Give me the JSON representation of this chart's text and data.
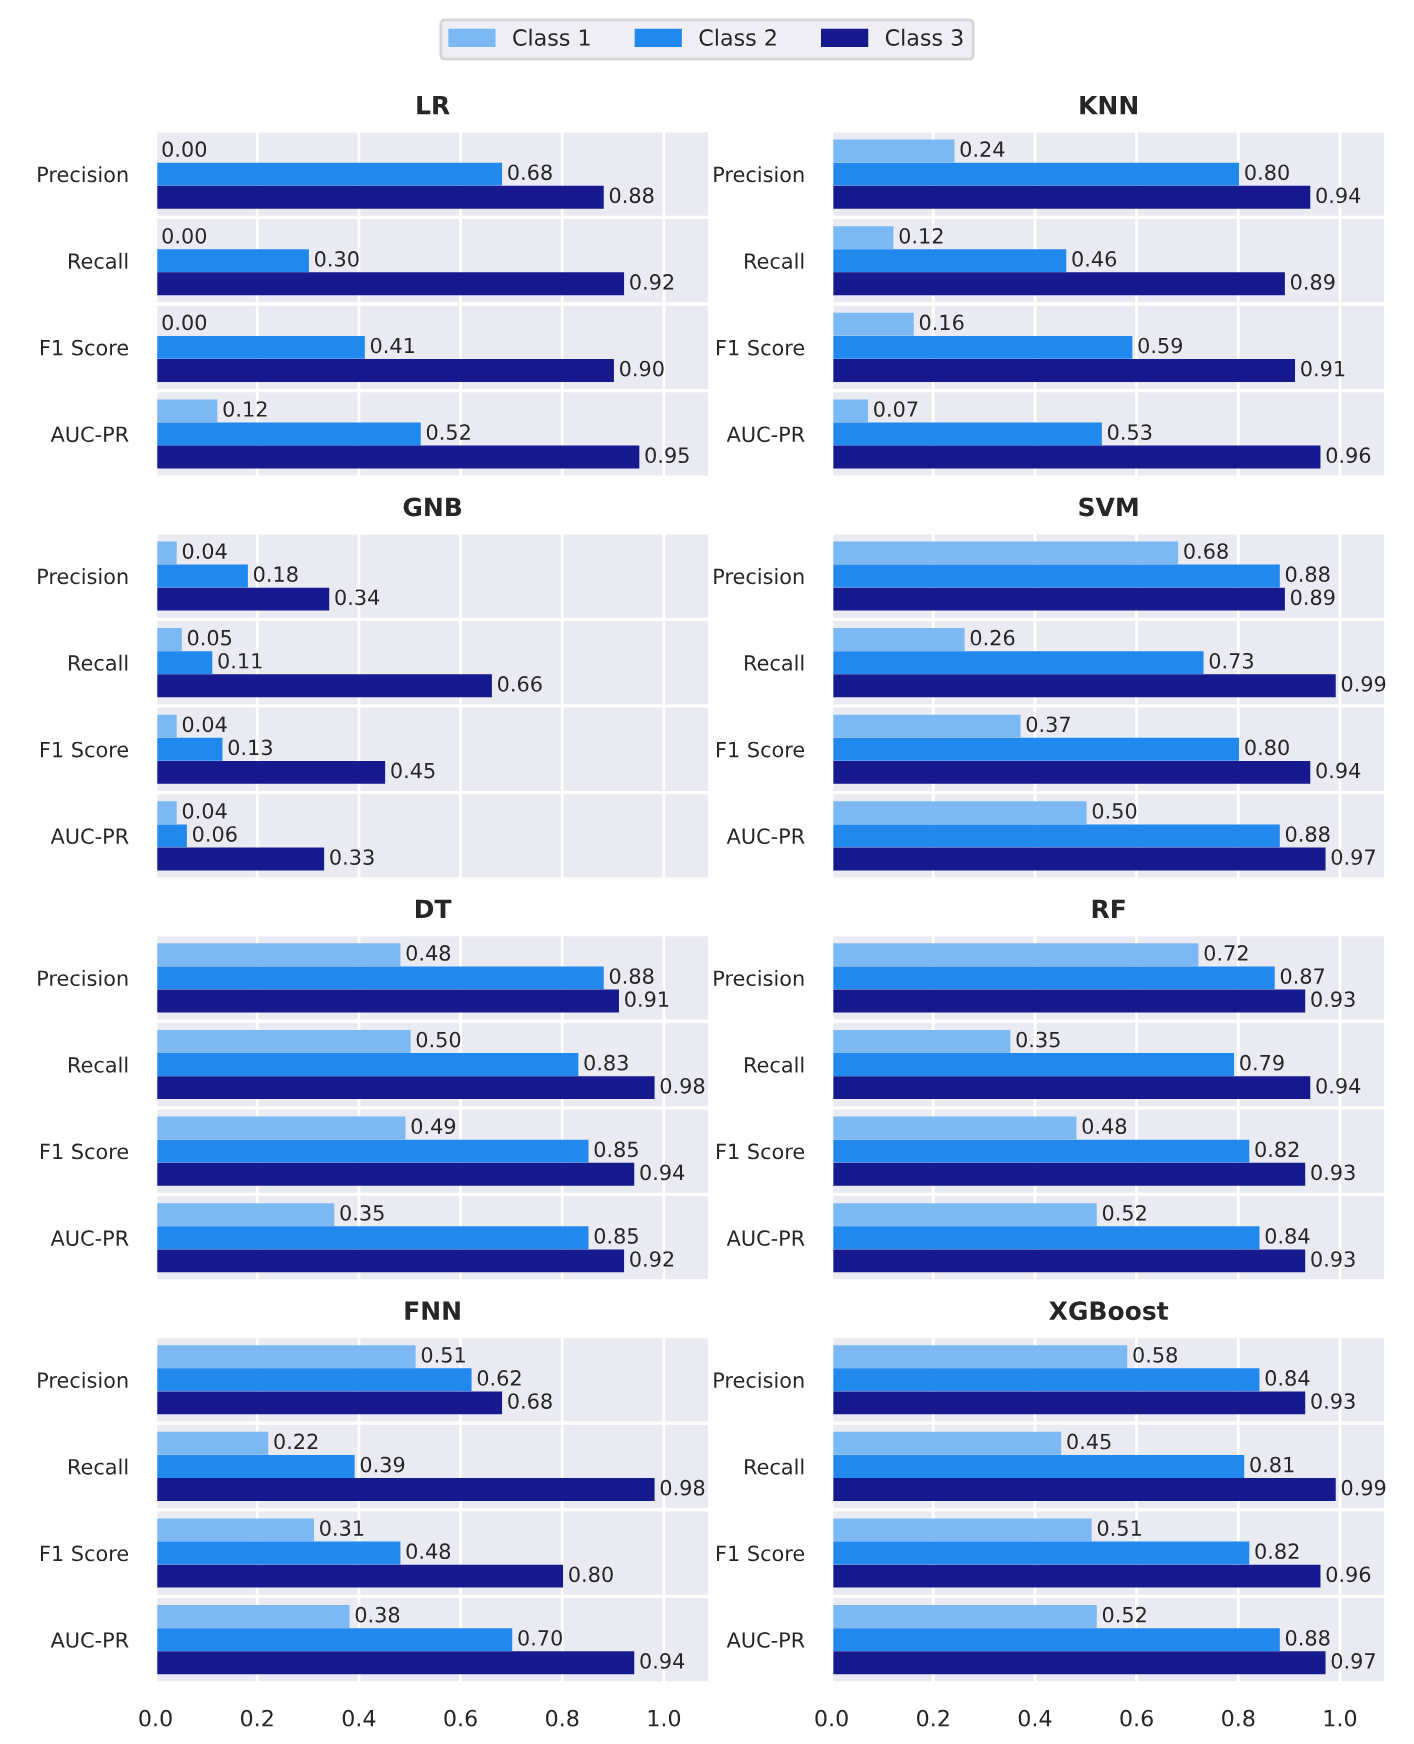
{
  "chart_data": [
    {
      "type": "bar",
      "orientation": "horizontal",
      "title": "LR",
      "categories": [
        "Precision",
        "Recall",
        "F1 Score",
        "AUC-PR"
      ],
      "series": [
        {
          "name": "Class 1",
          "color": "#7cb9f4",
          "values": [
            0.0,
            0.0,
            0.0,
            0.12
          ],
          "value_labels": [
            "0.00",
            "0.00",
            "0.00",
            "0.12"
          ]
        },
        {
          "name": "Class 2",
          "color": "#2188ee",
          "values": [
            0.68,
            0.3,
            0.41,
            0.52
          ],
          "value_labels": [
            "0.68",
            "0.30",
            "0.41",
            "0.52"
          ]
        },
        {
          "name": "Class 3",
          "color": "#161a8e",
          "values": [
            0.88,
            0.92,
            0.9,
            0.95
          ],
          "value_labels": [
            "0.88",
            "0.92",
            "0.90",
            "0.95"
          ]
        }
      ],
      "xlim": [
        0,
        1.09
      ],
      "xticks": [
        {
          "value": 0.0,
          "label": null
        },
        {
          "value": 0.2,
          "label": null
        },
        {
          "value": 0.4,
          "label": null
        },
        {
          "value": 0.6,
          "label": null
        },
        {
          "value": 0.8,
          "label": null
        },
        {
          "value": 1.0,
          "label": null
        }
      ],
      "grid": true,
      "legend": "top"
    },
    {
      "type": "bar",
      "orientation": "horizontal",
      "title": "KNN",
      "categories": [
        "Precision",
        "Recall",
        "F1 Score",
        "AUC-PR"
      ],
      "series": [
        {
          "color": "#7cb9f4",
          "values": [
            0.24,
            0.12,
            0.16,
            0.07
          ],
          "value_labels": [
            "0.24",
            "0.12",
            "0.16",
            "0.07"
          ]
        },
        {
          "color": "#2188ee",
          "values": [
            0.8,
            0.46,
            0.59,
            0.53
          ],
          "value_labels": [
            "0.80",
            "0.46",
            "0.59",
            "0.53"
          ]
        },
        {
          "color": "#161a8e",
          "values": [
            0.94,
            0.89,
            0.91,
            0.96
          ],
          "value_labels": [
            "0.94",
            "0.89",
            "0.91",
            "0.96"
          ]
        }
      ],
      "xlim": [
        0,
        1.09
      ],
      "xticks": [
        {
          "value": 0.0,
          "label": null
        },
        {
          "value": 0.2,
          "label": null
        },
        {
          "value": 0.4,
          "label": null
        },
        {
          "value": 0.6,
          "label": null
        },
        {
          "value": 0.8,
          "label": null
        },
        {
          "value": 1.0,
          "label": null
        }
      ],
      "grid": true
    },
    {
      "type": "bar",
      "orientation": "horizontal",
      "title": "GNB",
      "categories": [
        "Precision",
        "Recall",
        "F1 Score",
        "AUC-PR"
      ],
      "series": [
        {
          "color": "#7cb9f4",
          "values": [
            0.04,
            0.05,
            0.04,
            0.04
          ],
          "value_labels": [
            "0.04",
            "0.05",
            "0.04",
            "0.04"
          ]
        },
        {
          "color": "#2188ee",
          "values": [
            0.18,
            0.11,
            0.13,
            0.06
          ],
          "value_labels": [
            "0.18",
            "0.11",
            "0.13",
            "0.06"
          ]
        },
        {
          "color": "#161a8e",
          "values": [
            0.34,
            0.66,
            0.45,
            0.33
          ],
          "value_labels": [
            "0.34",
            "0.66",
            "0.45",
            "0.33"
          ]
        }
      ],
      "xlim": [
        0,
        1.09
      ],
      "xticks": [
        {
          "value": 0.0,
          "label": null
        },
        {
          "value": 0.2,
          "label": null
        },
        {
          "value": 0.4,
          "label": null
        },
        {
          "value": 0.6,
          "label": null
        },
        {
          "value": 0.8,
          "label": null
        },
        {
          "value": 1.0,
          "label": null
        }
      ],
      "grid": true
    },
    {
      "type": "bar",
      "orientation": "horizontal",
      "title": "SVM",
      "categories": [
        "Precision",
        "Recall",
        "F1 Score",
        "AUC-PR"
      ],
      "series": [
        {
          "color": "#7cb9f4",
          "values": [
            0.68,
            0.26,
            0.37,
            0.5
          ],
          "value_labels": [
            "0.68",
            "0.26",
            "0.37",
            "0.50"
          ]
        },
        {
          "color": "#2188ee",
          "values": [
            0.88,
            0.73,
            0.8,
            0.88
          ],
          "value_labels": [
            "0.88",
            "0.73",
            "0.80",
            "0.88"
          ]
        },
        {
          "color": "#161a8e",
          "values": [
            0.89,
            0.99,
            0.94,
            0.97
          ],
          "value_labels": [
            "0.89",
            "0.99",
            "0.94",
            "0.97"
          ]
        }
      ],
      "xlim": [
        0,
        1.09
      ],
      "xticks": [
        {
          "value": 0.0,
          "label": null
        },
        {
          "value": 0.2,
          "label": null
        },
        {
          "value": 0.4,
          "label": null
        },
        {
          "value": 0.6,
          "label": null
        },
        {
          "value": 0.8,
          "label": null
        },
        {
          "value": 1.0,
          "label": null
        }
      ],
      "grid": true
    },
    {
      "type": "bar",
      "orientation": "horizontal",
      "title": "DT",
      "categories": [
        "Precision",
        "Recall",
        "F1 Score",
        "AUC-PR"
      ],
      "series": [
        {
          "color": "#7cb9f4",
          "values": [
            0.48,
            0.5,
            0.49,
            0.35
          ],
          "value_labels": [
            "0.48",
            "0.50",
            "0.49",
            "0.35"
          ]
        },
        {
          "color": "#2188ee",
          "values": [
            0.88,
            0.83,
            0.85,
            0.85
          ],
          "value_labels": [
            "0.88",
            "0.83",
            "0.85",
            "0.85"
          ]
        },
        {
          "color": "#161a8e",
          "values": [
            0.91,
            0.98,
            0.94,
            0.92
          ],
          "value_labels": [
            "0.91",
            "0.98",
            "0.94",
            "0.92"
          ]
        }
      ],
      "xlim": [
        0,
        1.09
      ],
      "xticks": [
        {
          "value": 0.0,
          "label": null
        },
        {
          "value": 0.2,
          "label": null
        },
        {
          "value": 0.4,
          "label": null
        },
        {
          "value": 0.6,
          "label": null
        },
        {
          "value": 0.8,
          "label": null
        },
        {
          "value": 1.0,
          "label": null
        }
      ],
      "grid": true
    },
    {
      "type": "bar",
      "orientation": "horizontal",
      "title": "RF",
      "categories": [
        "Precision",
        "Recall",
        "F1 Score",
        "AUC-PR"
      ],
      "series": [
        {
          "color": "#7cb9f4",
          "values": [
            0.72,
            0.35,
            0.48,
            0.52
          ],
          "value_labels": [
            "0.72",
            "0.35",
            "0.48",
            "0.52"
          ]
        },
        {
          "color": "#2188ee",
          "values": [
            0.87,
            0.79,
            0.82,
            0.84
          ],
          "value_labels": [
            "0.87",
            "0.79",
            "0.82",
            "0.84"
          ]
        },
        {
          "color": "#161a8e",
          "values": [
            0.93,
            0.94,
            0.93,
            0.93
          ],
          "value_labels": [
            "0.93",
            "0.94",
            "0.93",
            "0.93"
          ]
        }
      ],
      "xlim": [
        0,
        1.09
      ],
      "xticks": [
        {
          "value": 0.0,
          "label": null
        },
        {
          "value": 0.2,
          "label": null
        },
        {
          "value": 0.4,
          "label": null
        },
        {
          "value": 0.6,
          "label": null
        },
        {
          "value": 0.8,
          "label": null
        },
        {
          "value": 1.0,
          "label": null
        }
      ],
      "grid": true
    },
    {
      "type": "bar",
      "orientation": "horizontal",
      "title": "FNN",
      "categories": [
        "Precision",
        "Recall",
        "F1 Score",
        "AUC-PR"
      ],
      "series": [
        {
          "color": "#7cb9f4",
          "values": [
            0.51,
            0.22,
            0.31,
            0.38
          ],
          "value_labels": [
            "0.51",
            "0.22",
            "0.31",
            "0.38"
          ]
        },
        {
          "color": "#2188ee",
          "values": [
            0.62,
            0.39,
            0.48,
            0.7
          ],
          "value_labels": [
            "0.62",
            "0.39",
            "0.48",
            "0.70"
          ]
        },
        {
          "color": "#161a8e",
          "values": [
            0.68,
            0.98,
            0.8,
            0.94
          ],
          "value_labels": [
            "0.68",
            "0.98",
            "0.80",
            "0.94"
          ]
        }
      ],
      "xlim": [
        0,
        1.09
      ],
      "xticks": [
        {
          "value": 0.0,
          "label": "0.0"
        },
        {
          "value": 0.2,
          "label": "0.2"
        },
        {
          "value": 0.4,
          "label": "0.4"
        },
        {
          "value": 0.6,
          "label": "0.6"
        },
        {
          "value": 0.8,
          "label": "0.8"
        },
        {
          "value": 1.0,
          "label": "1.0"
        }
      ],
      "grid": true
    },
    {
      "type": "bar",
      "orientation": "horizontal",
      "title": "XGBoost",
      "categories": [
        "Precision",
        "Recall",
        "F1 Score",
        "AUC-PR"
      ],
      "series": [
        {
          "color": "#7cb9f4",
          "values": [
            0.58,
            0.45,
            0.51,
            0.52
          ],
          "value_labels": [
            "0.58",
            "0.45",
            "0.51",
            "0.52"
          ]
        },
        {
          "color": "#2188ee",
          "values": [
            0.84,
            0.81,
            0.82,
            0.88
          ],
          "value_labels": [
            "0.84",
            "0.81",
            "0.82",
            "0.88"
          ]
        },
        {
          "color": "#161a8e",
          "values": [
            0.93,
            0.99,
            0.96,
            0.97
          ],
          "value_labels": [
            "0.93",
            "0.99",
            "0.96",
            "0.97"
          ]
        }
      ],
      "xlim": [
        0,
        1.09
      ],
      "xticks": [
        {
          "value": 0.0,
          "label": "0.0"
        },
        {
          "value": 0.2,
          "label": "0.2"
        },
        {
          "value": 0.4,
          "label": "0.4"
        },
        {
          "value": 0.6,
          "label": "0.6"
        },
        {
          "value": 0.8,
          "label": "0.8"
        },
        {
          "value": 1.0,
          "label": "1.0"
        }
      ],
      "grid": true
    }
  ]
}
